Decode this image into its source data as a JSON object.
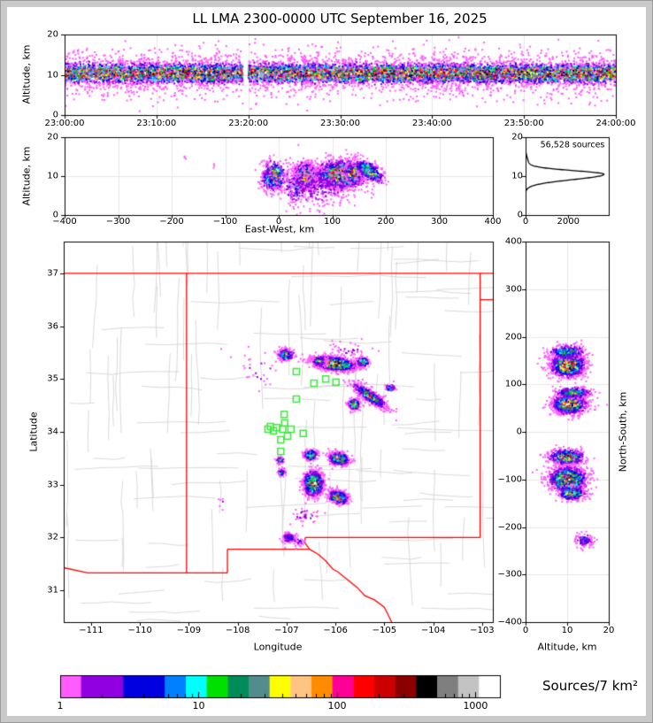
{
  "title": "LL LMA 2300-0000 UTC September 16, 2025",
  "panels": {
    "time_height": {
      "ylabel": "Altitude, km",
      "yticks": [
        {
          "v": 0,
          "t": "0"
        },
        {
          "v": 10,
          "t": "10"
        },
        {
          "v": 20,
          "t": "20"
        }
      ],
      "xticks": [
        {
          "v": 0,
          "t": "23:00:00"
        },
        {
          "v": 600,
          "t": "23:10:00"
        },
        {
          "v": 1200,
          "t": "23:20:00"
        },
        {
          "v": 1800,
          "t": "23:30:00"
        },
        {
          "v": 2400,
          "t": "23:40:00"
        },
        {
          "v": 3000,
          "t": "23:50:00"
        },
        {
          "v": 3600,
          "t": "24:00:00"
        }
      ]
    },
    "ew_height": {
      "xlabel": "East-West, km",
      "ylabel": "Altitude, km",
      "yticks": [
        {
          "v": 0,
          "t": "0"
        },
        {
          "v": 10,
          "t": "10"
        },
        {
          "v": 20,
          "t": "20"
        }
      ],
      "xticks": [
        {
          "v": -400,
          "t": "−400"
        },
        {
          "v": -300,
          "t": "−300"
        },
        {
          "v": -200,
          "t": "−200"
        },
        {
          "v": -100,
          "t": "−100"
        },
        {
          "v": 0,
          "t": "0"
        },
        {
          "v": 100,
          "t": "100"
        },
        {
          "v": 200,
          "t": "200"
        },
        {
          "v": 300,
          "t": "300"
        },
        {
          "v": 400,
          "t": "400"
        }
      ]
    },
    "alt_hist": {
      "annotation": "56,528 sources",
      "yticks": [
        {
          "v": 0,
          "t": "0"
        },
        {
          "v": 10,
          "t": "10"
        },
        {
          "v": 20,
          "t": "20"
        }
      ],
      "xticks": [
        {
          "v": 0,
          "t": "0"
        },
        {
          "v": 2000,
          "t": "2000"
        }
      ]
    },
    "map": {
      "xlabel": "Longitude",
      "ylabel": "Latitude",
      "xticks": [
        {
          "v": -111,
          "t": "−111"
        },
        {
          "v": -110,
          "t": "−110"
        },
        {
          "v": -109,
          "t": "−109"
        },
        {
          "v": -108,
          "t": "−108"
        },
        {
          "v": -107,
          "t": "−107"
        },
        {
          "v": -106,
          "t": "−106"
        },
        {
          "v": -105,
          "t": "−105"
        },
        {
          "v": -104,
          "t": "−104"
        },
        {
          "v": -103,
          "t": "−103"
        }
      ],
      "yticks": [
        {
          "v": 31,
          "t": "31"
        },
        {
          "v": 32,
          "t": "32"
        },
        {
          "v": 33,
          "t": "33"
        },
        {
          "v": 34,
          "t": "34"
        },
        {
          "v": 35,
          "t": "35"
        },
        {
          "v": 36,
          "t": "36"
        },
        {
          "v": 37,
          "t": "37"
        }
      ]
    },
    "ns_height": {
      "xlabel": "Altitude, km",
      "ylabel": "North-South, km",
      "xticks": [
        {
          "v": 0,
          "t": "0"
        },
        {
          "v": 10,
          "t": "10"
        },
        {
          "v": 20,
          "t": "20"
        }
      ],
      "yticks": [
        {
          "v": 400,
          "t": "400"
        },
        {
          "v": 300,
          "t": "300"
        },
        {
          "v": 200,
          "t": "200"
        },
        {
          "v": 100,
          "t": "100"
        },
        {
          "v": 0,
          "t": "0"
        },
        {
          "v": -100,
          "t": "−100"
        },
        {
          "v": -200,
          "t": "−200"
        },
        {
          "v": -300,
          "t": "−300"
        },
        {
          "v": -400,
          "t": "−400"
        }
      ]
    }
  },
  "colorbar": {
    "label": "Sources/7 km²",
    "tick_labels": [
      {
        "v": 1,
        "t": "1"
      },
      {
        "v": 10,
        "t": "10"
      },
      {
        "v": 100,
        "t": "100"
      },
      {
        "v": 1000,
        "t": "1000"
      }
    ],
    "range": [
      1,
      1500
    ],
    "colors": [
      "#ff5cff",
      "#9000e0",
      "#0000e0",
      "#0080ff",
      "#00ffff",
      "#00e000",
      "#008c58",
      "#528c8c",
      "#ffff00",
      "#ffc382",
      "#ff8c00",
      "#ff0096",
      "#ff0000",
      "#cd0000",
      "#8b0000",
      "#000000",
      "#7f7f7f",
      "#c3c3c3",
      "#ffffff"
    ],
    "slot_widths": [
      1,
      2,
      2,
      1,
      1,
      1,
      1,
      1,
      1,
      1,
      1,
      1,
      1,
      1,
      1,
      1,
      1,
      1,
      1
    ]
  },
  "chart_data": {
    "type": "scatter",
    "description": "Lightning Mapping Array source density, five linked panels; cluster fields are [cx, cy, sigma_x, sigma_y, rotation_deg, peak_intensity_0to1, n_points]",
    "time_height_band": {
      "xlim": [
        0,
        3600
      ],
      "ylim": [
        0,
        20
      ],
      "center_alt_km": 10.35,
      "core_sd_km": 1.15,
      "outlier_sd_km": 2.9,
      "outlier_fraction": 0.25,
      "n_points": 12000,
      "peak_intensity": 0.88,
      "gap_seconds": [
        1165,
        1200
      ]
    },
    "ew_height_clusters": [
      [
        -8,
        10.0,
        12,
        1.9,
        0,
        0.68,
        380
      ],
      [
        -20,
        9.0,
        6,
        1.5,
        0,
        0.4,
        120
      ],
      [
        50,
        10.0,
        10,
        1.6,
        0,
        0.97,
        850
      ],
      [
        118,
        10.4,
        24,
        1.7,
        0,
        0.95,
        1600
      ],
      [
        140,
        10.8,
        8,
        1.2,
        0,
        1.0,
        400
      ],
      [
        170,
        11.2,
        14,
        1.3,
        -4,
        0.55,
        320
      ],
      [
        30,
        7.0,
        12,
        2.2,
        0,
        0.3,
        160
      ],
      [
        75,
        7.5,
        40,
        2.8,
        0,
        0.13,
        420
      ],
      [
        -175,
        14.5,
        1.5,
        0.5,
        0,
        0.05,
        3
      ],
      [
        -120,
        12.5,
        1.5,
        0.5,
        0,
        0.05,
        3
      ]
    ],
    "alt_histogram": {
      "xlim": [
        0,
        3900
      ],
      "peak_value": 3650,
      "peak_alt_km": 10.45,
      "sigma_below": 1.35,
      "sigma_above": 0.95,
      "tail_amp": 130,
      "tail_alt_km": 13.2,
      "tail_sigma": 1.5
    },
    "map": {
      "lon_range": [
        -111.56,
        -102.78
      ],
      "lat_range": [
        30.4,
        37.6
      ],
      "clusters": [
        [
          -107.02,
          35.46,
          0.08,
          0.055,
          0,
          0.55,
          260
        ],
        [
          -106.02,
          35.29,
          0.22,
          0.062,
          -6,
          0.93,
          1500
        ],
        [
          -106.33,
          35.34,
          0.07,
          0.05,
          0,
          0.45,
          180
        ],
        [
          -105.44,
          35.32,
          0.06,
          0.05,
          0,
          0.55,
          200
        ],
        [
          -105.3,
          34.68,
          0.2,
          0.05,
          -32,
          0.62,
          700
        ],
        [
          -105.62,
          34.52,
          0.055,
          0.045,
          0,
          0.97,
          380
        ],
        [
          -104.88,
          34.83,
          0.05,
          0.04,
          0,
          0.4,
          60
        ],
        [
          -106.5,
          33.56,
          0.07,
          0.05,
          0,
          0.66,
          280
        ],
        [
          -105.93,
          33.49,
          0.1,
          0.06,
          -10,
          0.82,
          520
        ],
        [
          -107.13,
          33.47,
          0.04,
          0.03,
          0,
          0.35,
          70
        ],
        [
          -107.1,
          33.23,
          0.04,
          0.035,
          0,
          0.42,
          80
        ],
        [
          -106.45,
          33.02,
          0.1,
          0.11,
          0,
          0.93,
          1200
        ],
        [
          -105.94,
          32.76,
          0.1,
          0.06,
          -15,
          0.8,
          480
        ],
        [
          -106.95,
          32.0,
          0.07,
          0.05,
          0,
          0.3,
          140
        ],
        [
          -106.75,
          31.93,
          0.05,
          0.04,
          0,
          0.2,
          30
        ],
        [
          -106.6,
          32.42,
          0.15,
          0.1,
          0,
          0.12,
          40
        ],
        [
          -107.6,
          35.15,
          0.3,
          0.2,
          0,
          0.08,
          30
        ],
        [
          -105.7,
          35.55,
          0.2,
          0.08,
          0,
          0.1,
          40
        ],
        [
          -108.3,
          32.7,
          0.05,
          0.05,
          0,
          0.08,
          6
        ]
      ],
      "stations_lon_lat": [
        [
          -106.8,
          35.14
        ],
        [
          -106.44,
          34.92
        ],
        [
          -105.99,
          34.94
        ],
        [
          -106.8,
          34.62
        ],
        [
          -106.2,
          35.0
        ],
        [
          -107.38,
          34.05
        ],
        [
          -107.27,
          34.02
        ],
        [
          -107.2,
          34.08
        ],
        [
          -107.08,
          34.05
        ],
        [
          -107.04,
          34.17
        ],
        [
          -107.05,
          34.33
        ],
        [
          -106.98,
          33.92
        ],
        [
          -107.12,
          33.85
        ],
        [
          -106.66,
          33.97
        ],
        [
          -107.12,
          33.63
        ],
        [
          -107.33,
          34.1
        ],
        [
          -106.91,
          34.05
        ]
      ],
      "state_borders": [
        [
          [
            -111.56,
            37
          ],
          [
            -102.78,
            37
          ]
        ],
        [
          [
            -109.047,
            37
          ],
          [
            -109.047,
            31.33
          ]
        ],
        [
          [
            -103.04,
            37
          ],
          [
            -103.04,
            32.0
          ]
        ],
        [
          [
            -103.04,
            36.5
          ],
          [
            -102.78,
            36.5
          ]
        ],
        [
          [
            -103.04,
            32.0
          ],
          [
            -106.62,
            32.0
          ]
        ],
        [
          [
            -106.62,
            32.0
          ],
          [
            -106.63,
            31.91
          ],
          [
            -106.53,
            31.78
          ]
        ],
        [
          [
            -106.53,
            31.78
          ],
          [
            -108.21,
            31.78
          ]
        ],
        [
          [
            -108.21,
            31.78
          ],
          [
            -108.21,
            31.33
          ]
        ],
        [
          [
            -108.21,
            31.33
          ],
          [
            -109.047,
            31.33
          ]
        ],
        [
          [
            -109.047,
            31.33
          ],
          [
            -111.07,
            31.33
          ],
          [
            -111.56,
            31.43
          ]
        ],
        [
          [
            -106.53,
            31.78
          ],
          [
            -106.35,
            31.68
          ],
          [
            -106.2,
            31.56
          ],
          [
            -106.05,
            31.4
          ],
          [
            -105.95,
            31.35
          ],
          [
            -105.75,
            31.2
          ],
          [
            -105.55,
            31.05
          ],
          [
            -105.4,
            30.9
          ],
          [
            -105.2,
            30.82
          ],
          [
            -105.0,
            30.68
          ],
          [
            -104.93,
            30.55
          ],
          [
            -104.85,
            30.4
          ]
        ]
      ]
    },
    "ns_height_clusters": [
      [
        10.2,
        140,
        2.0,
        12,
        0,
        0.95,
        1500
      ],
      [
        10.0,
        168,
        2.2,
        8,
        0,
        0.45,
        300
      ],
      [
        10.5,
        58,
        1.9,
        10,
        0,
        0.97,
        1300
      ],
      [
        11.5,
        82,
        2.2,
        6,
        0,
        0.5,
        280
      ],
      [
        9.8,
        -53,
        2.1,
        8,
        0,
        0.82,
        650
      ],
      [
        10.2,
        -100,
        2.2,
        13,
        0,
        0.93,
        1400
      ],
      [
        11.2,
        -130,
        1.6,
        7,
        0,
        0.68,
        280
      ],
      [
        14.2,
        -228,
        1.1,
        7,
        0,
        0.27,
        130
      ]
    ]
  }
}
